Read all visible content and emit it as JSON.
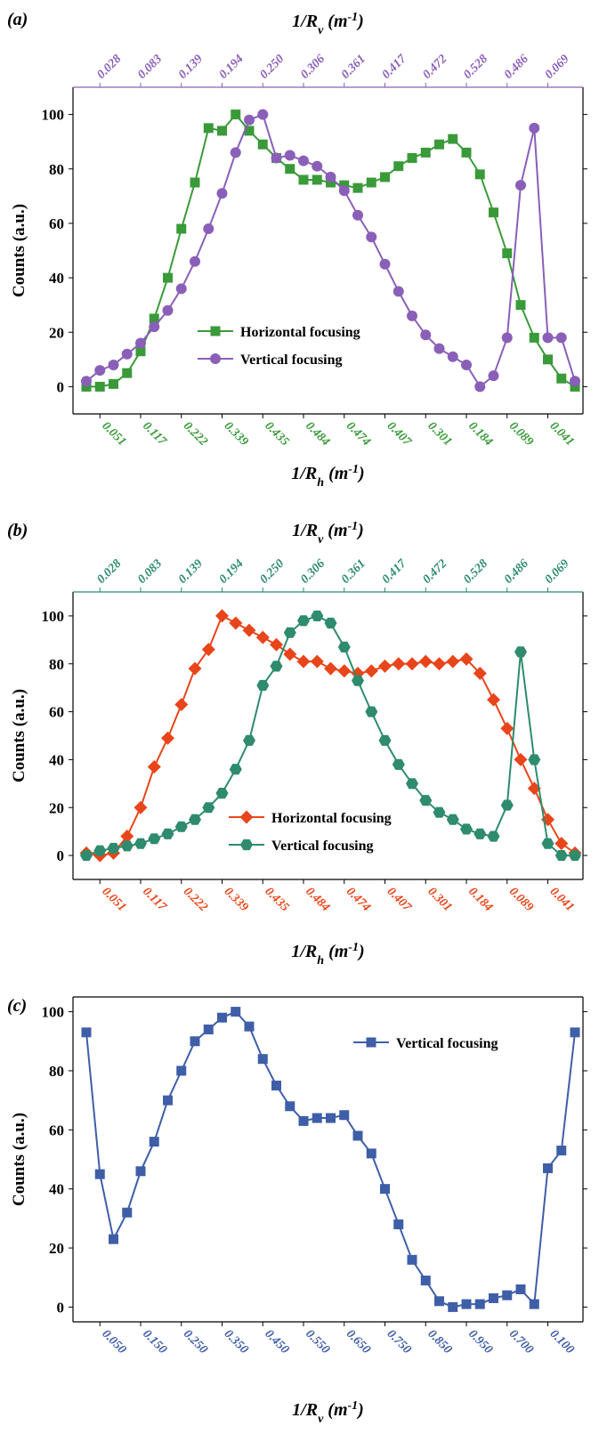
{
  "chart_data": [
    {
      "type": "line",
      "label": "(a)",
      "top_xlabel": [
        "1/R",
        "v",
        " (m",
        "-1",
        ")"
      ],
      "xlabel": [
        "1/R",
        "h",
        " (m",
        "-1",
        ")"
      ],
      "ylabel": "Counts (a.u.)",
      "categories": [
        null,
        "0.051",
        null,
        null,
        "0.117",
        null,
        null,
        "0.222",
        null,
        null,
        "0.339",
        null,
        null,
        "0.435",
        null,
        null,
        "0.484",
        null,
        null,
        "0.474",
        null,
        null,
        "0.407",
        null,
        null,
        "0.301",
        null,
        null,
        "0.184",
        null,
        null,
        "0.089",
        null,
        null,
        "0.041",
        null,
        null
      ],
      "top_categories": [
        null,
        "0.028",
        null,
        null,
        "0.083",
        null,
        null,
        "0.139",
        null,
        null,
        "0.194",
        null,
        null,
        "0.250",
        null,
        null,
        "0.306",
        null,
        null,
        "0.361",
        null,
        null,
        "0.417",
        null,
        null,
        "0.472",
        null,
        null,
        "0.528",
        null,
        null,
        "0.486",
        null,
        null,
        "0.069",
        null,
        null
      ],
      "bottom_color": "#3a9a3a",
      "top_color": "#8a5fb8",
      "ylim": [
        -10,
        110
      ],
      "yticks": [
        0,
        20,
        40,
        60,
        80,
        100
      ],
      "legend": "lower left",
      "series": [
        {
          "name": "Horizontal focusing",
          "color": "#3a9a3a",
          "marker": "square",
          "values": [
            0,
            0,
            1,
            5,
            13,
            25,
            40,
            58,
            75,
            95,
            94,
            100,
            94,
            89,
            84,
            80,
            76,
            76,
            75,
            74,
            73,
            75,
            77,
            81,
            84,
            86,
            89,
            91,
            86,
            78,
            64,
            49,
            30,
            18,
            10,
            3,
            0
          ]
        },
        {
          "name": "Vertical focusing",
          "color": "#8a5fb8",
          "marker": "circle",
          "values": [
            2,
            6,
            8,
            12,
            16,
            22,
            28,
            36,
            46,
            58,
            71,
            86,
            98,
            100,
            84,
            85,
            83,
            81,
            77,
            72,
            63,
            55,
            45,
            35,
            26,
            19,
            14,
            11,
            8,
            0,
            4,
            18,
            74,
            95,
            18,
            18,
            2
          ]
        }
      ]
    },
    {
      "type": "line",
      "label": "(b)",
      "top_xlabel": [
        "1/R",
        "v",
        " (m",
        "-1",
        ")"
      ],
      "xlabel": [
        "1/R",
        "h",
        " (m",
        "-1",
        ")"
      ],
      "ylabel": "Counts (a.u.)",
      "categories": [
        null,
        "0.051",
        null,
        null,
        "0.117",
        null,
        null,
        "0.222",
        null,
        null,
        "0.339",
        null,
        null,
        "0.435",
        null,
        null,
        "0.484",
        null,
        null,
        "0.474",
        null,
        null,
        "0.407",
        null,
        null,
        "0.301",
        null,
        null,
        "0.184",
        null,
        null,
        "0.089",
        null,
        null,
        "0.041",
        null,
        null
      ],
      "top_categories": [
        null,
        "0.028",
        null,
        null,
        "0.083",
        null,
        null,
        "0.139",
        null,
        null,
        "0.194",
        null,
        null,
        "0.250",
        null,
        null,
        "0.306",
        null,
        null,
        "0.361",
        null,
        null,
        "0.417",
        null,
        null,
        "0.472",
        null,
        null,
        "0.528",
        null,
        null,
        "0.486",
        null,
        null,
        "0.069",
        null,
        null
      ],
      "bottom_color": "#e8451a",
      "top_color": "#2e8b6e",
      "ylim": [
        -10,
        110
      ],
      "yticks": [
        0,
        20,
        40,
        60,
        80,
        100
      ],
      "legend": "lower center",
      "series": [
        {
          "name": "Horizontal focusing",
          "color": "#e8451a",
          "marker": "diamond",
          "values": [
            1,
            0,
            1,
            8,
            20,
            37,
            49,
            63,
            78,
            86,
            100,
            97,
            94,
            91,
            88,
            84,
            81,
            81,
            78,
            77,
            76,
            77,
            79,
            80,
            80,
            81,
            80,
            81,
            82,
            76,
            65,
            53,
            40,
            28,
            15,
            5,
            1
          ]
        },
        {
          "name": "Vertical focusing",
          "color": "#2e8b6e",
          "marker": "hexagon",
          "values": [
            0,
            2,
            3,
            4,
            5,
            7,
            9,
            12,
            15,
            20,
            26,
            36,
            48,
            71,
            79,
            93,
            98,
            100,
            97,
            87,
            73,
            60,
            48,
            38,
            30,
            23,
            18,
            15,
            11,
            9,
            8,
            21,
            85,
            40,
            5,
            0,
            0
          ]
        }
      ]
    },
    {
      "type": "line",
      "label": "(c)",
      "xlabel": [
        "1/R",
        "v",
        " (m",
        "-1",
        ")"
      ],
      "ylabel": "Counts (a.u.)",
      "categories": [
        null,
        "0.050",
        null,
        null,
        "0.150",
        null,
        null,
        "0.250",
        null,
        null,
        "0.350",
        null,
        null,
        "0.450",
        null,
        null,
        "0.550",
        null,
        null,
        "0.650",
        null,
        null,
        "0.750",
        null,
        null,
        "0.850",
        null,
        null,
        "0.950",
        null,
        null,
        "0.700",
        null,
        null,
        "0.100",
        null,
        null
      ],
      "bottom_color": "#3f5ea8",
      "ylim": [
        -5,
        105
      ],
      "yticks": [
        0,
        20,
        40,
        60,
        80,
        100
      ],
      "legend": "upper right",
      "series": [
        {
          "name": "Vertical focusing",
          "color": "#3f5ea8",
          "marker": "square",
          "values": [
            93,
            45,
            23,
            32,
            46,
            56,
            70,
            80,
            90,
            94,
            98,
            100,
            95,
            84,
            75,
            68,
            63,
            64,
            64,
            65,
            58,
            52,
            40,
            28,
            16,
            9,
            2,
            0,
            1,
            1,
            3,
            4,
            6,
            1,
            47,
            53,
            93
          ]
        }
      ]
    }
  ]
}
